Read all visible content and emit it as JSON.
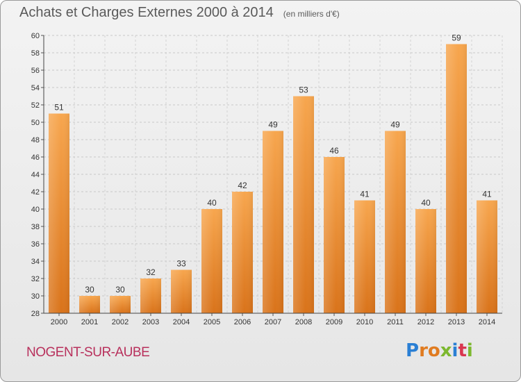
{
  "chart_data": {
    "type": "bar",
    "title": "Achats et Charges Externes 2000 à 2014",
    "subtitle": "(en milliers d'€)",
    "categories": [
      "2000",
      "2001",
      "2002",
      "2003",
      "2004",
      "2005",
      "2006",
      "2007",
      "2008",
      "2009",
      "2010",
      "2011",
      "2012",
      "2013",
      "2014"
    ],
    "values": [
      51,
      30,
      30,
      32,
      33,
      40,
      42,
      49,
      53,
      46,
      41,
      49,
      40,
      59,
      41
    ],
    "ylim": [
      28,
      60
    ],
    "yticks": [
      28,
      30,
      32,
      34,
      36,
      38,
      40,
      42,
      44,
      46,
      48,
      50,
      52,
      54,
      56,
      58,
      60
    ],
    "grid": true,
    "bar_color": "#f28c28"
  },
  "location": "NOGENT-SUR-AUBE",
  "brand": {
    "letters": [
      "P",
      "r",
      "o",
      "x",
      "i",
      "t",
      "i"
    ],
    "colors": [
      "#2a7fd4",
      "#e07b20",
      "#e07b20",
      "#7cb82f",
      "#2a7fd4",
      "#d9364f",
      "#7cb82f"
    ]
  }
}
